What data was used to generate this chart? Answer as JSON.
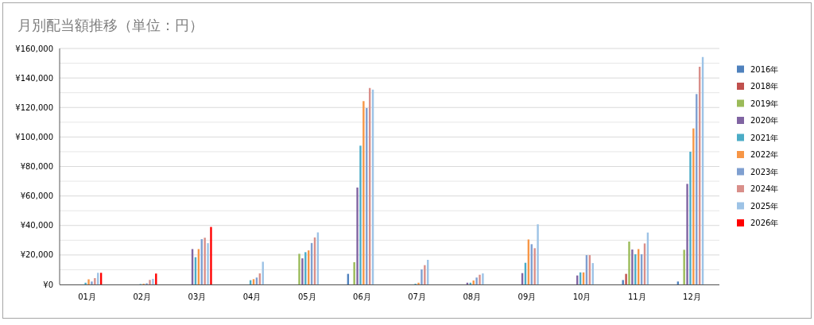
{
  "chart_data": {
    "type": "bar",
    "title": "月別配当額推移（単位：円）",
    "categories": [
      "01月",
      "02月",
      "03月",
      "04月",
      "05月",
      "06月",
      "07月",
      "08月",
      "09月",
      "10月",
      "11月",
      "12月"
    ],
    "series": [
      {
        "name": "2016年",
        "color": "#4f81bd",
        "values": [
          null,
          null,
          null,
          null,
          null,
          7200,
          null,
          null,
          null,
          null,
          3000,
          2000
        ]
      },
      {
        "name": "2018年",
        "color": "#c0504d",
        "values": [
          null,
          null,
          null,
          null,
          null,
          null,
          null,
          null,
          null,
          null,
          7200,
          null
        ]
      },
      {
        "name": "2019年",
        "color": "#9bbb59",
        "values": [
          null,
          null,
          null,
          null,
          20800,
          15100,
          null,
          null,
          null,
          null,
          29100,
          23500
        ]
      },
      {
        "name": "2020年",
        "color": "#8064a2",
        "values": [
          null,
          null,
          24000,
          null,
          17700,
          65700,
          null,
          1200,
          7700,
          6100,
          23700,
          68200
        ]
      },
      {
        "name": "2021年",
        "color": "#4bacc6",
        "values": [
          1200,
          300,
          18500,
          2900,
          21900,
          94100,
          500,
          1200,
          14700,
          8200,
          20500,
          90000
        ]
      },
      {
        "name": "2022年",
        "color": "#f79646",
        "values": [
          3500,
          500,
          24000,
          3600,
          23100,
          124300,
          1200,
          2700,
          30500,
          8200,
          24000,
          105800
        ]
      },
      {
        "name": "2023年",
        "color": "#7f9fd0",
        "values": [
          2000,
          800,
          30700,
          4700,
          28100,
          119600,
          10200,
          4700,
          27300,
          19900,
          20500,
          129100
        ]
      },
      {
        "name": "2024年",
        "color": "#d98f8a",
        "values": [
          4300,
          3100,
          31700,
          7500,
          31900,
          133200,
          13100,
          6600,
          24600,
          19900,
          27800,
          147600
        ]
      },
      {
        "name": "2025年",
        "color": "#9dc3e6",
        "values": [
          7900,
          3800,
          28000,
          15400,
          35300,
          132100,
          16700,
          7500,
          40800,
          14500,
          35200,
          154200
        ]
      },
      {
        "name": "2026年",
        "color": "#ff0000",
        "values": [
          7900,
          7400,
          39000,
          null,
          null,
          null,
          null,
          null,
          null,
          null,
          null,
          null
        ]
      }
    ],
    "ylim": [
      0,
      160000
    ],
    "yticks": [
      {
        "value": 0,
        "label": "¥0"
      },
      {
        "value": 10000,
        "label": null
      },
      {
        "value": 20000,
        "label": "¥20,000"
      },
      {
        "value": 30000,
        "label": null
      },
      {
        "value": 40000,
        "label": "¥40,000"
      },
      {
        "value": 50000,
        "label": null
      },
      {
        "value": 60000,
        "label": "¥60,000"
      },
      {
        "value": 70000,
        "label": null
      },
      {
        "value": 80000,
        "label": "¥80,000"
      },
      {
        "value": 90000,
        "label": null
      },
      {
        "value": 100000,
        "label": "¥100,000"
      },
      {
        "value": 110000,
        "label": null
      },
      {
        "value": 120000,
        "label": "¥120,000"
      },
      {
        "value": 130000,
        "label": null
      },
      {
        "value": 140000,
        "label": "¥140,000"
      },
      {
        "value": 150000,
        "label": null
      },
      {
        "value": 160000,
        "label": "¥160,000"
      }
    ],
    "grid": "y",
    "legend": "right"
  }
}
